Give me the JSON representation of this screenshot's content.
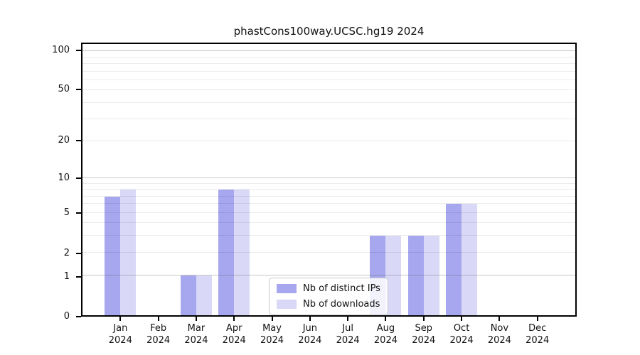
{
  "title": "phastCons100way.UCSC.hg19 2024",
  "colors": {
    "ips": "#a7a7f0",
    "downloads": "#d9d9f7",
    "axis": "#000000",
    "text": "#111111",
    "grid_major": "#c6c6c6",
    "grid_minor": "#ececec"
  },
  "legend": {
    "items": [
      {
        "label": "Nb of distinct IPs",
        "color_key": "ips"
      },
      {
        "label": "Nb of downloads",
        "color_key": "downloads"
      }
    ]
  },
  "chart_data": {
    "type": "bar",
    "title": "phastCons100way.UCSC.hg19 2024",
    "categories": [
      "Jan",
      "Feb",
      "Mar",
      "Apr",
      "May",
      "Jun",
      "Jul",
      "Aug",
      "Sep",
      "Oct",
      "Nov",
      "Dec"
    ],
    "year": "2024",
    "series": [
      {
        "name": "Nb of distinct IPs",
        "color_key": "ips",
        "values": [
          7,
          0,
          1,
          8,
          0,
          0,
          0,
          3,
          3,
          6,
          0,
          0
        ]
      },
      {
        "name": "Nb of downloads",
        "color_key": "downloads",
        "values": [
          8,
          0,
          1,
          8,
          0,
          0,
          0,
          3,
          3,
          6,
          0,
          0
        ]
      }
    ],
    "xlabel": "",
    "ylabel": "",
    "yscale": "log1p",
    "ylim": [
      0,
      114
    ],
    "y_tick_labels": [
      0,
      1,
      2,
      5,
      10,
      20,
      50,
      100
    ],
    "y_major_gridlines": [
      1,
      10,
      100
    ],
    "y_minor_gridlines": [
      2,
      3,
      4,
      5,
      6,
      7,
      8,
      9,
      20,
      30,
      40,
      50,
      60,
      70,
      80,
      90
    ],
    "grid": true,
    "legend_position": "lower-center"
  }
}
